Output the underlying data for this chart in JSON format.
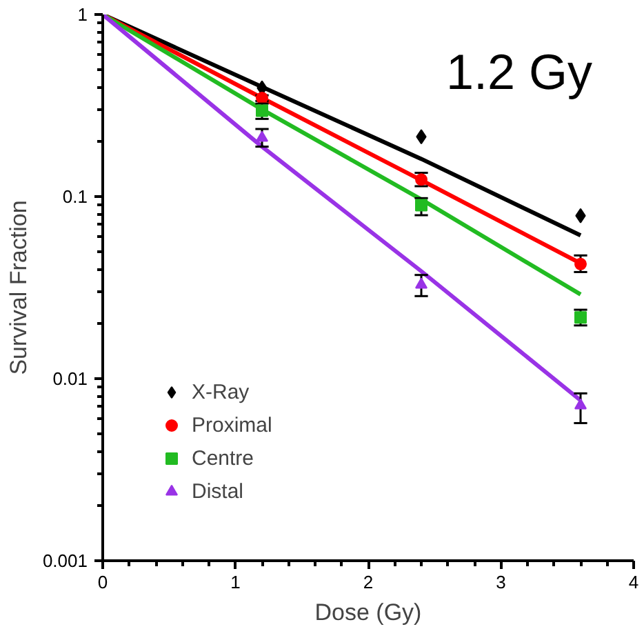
{
  "chart_data": {
    "type": "scatter",
    "title": "1.2 Gy",
    "xlabel": "Dose (Gy)",
    "ylabel": "Survival Fraction",
    "log": "y",
    "grid": false,
    "legend": "bottom left",
    "xlim": [
      0,
      4
    ],
    "ylim": [
      0.001,
      1
    ],
    "xticks": [
      0,
      {
        "value": 0.2,
        "label": null
      },
      {
        "value": 0.4,
        "label": null
      },
      {
        "value": 0.6,
        "label": null
      },
      {
        "value": 0.8,
        "label": null
      },
      1,
      {
        "value": 1.2,
        "label": null
      },
      {
        "value": 1.4,
        "label": null
      },
      {
        "value": 1.6,
        "label": null
      },
      {
        "value": 1.8,
        "label": null
      },
      2,
      {
        "value": 2.2,
        "label": null
      },
      {
        "value": 2.4,
        "label": null
      },
      {
        "value": 2.6,
        "label": null
      },
      {
        "value": 2.8,
        "label": null
      },
      3,
      {
        "value": 3.2,
        "label": null
      },
      {
        "value": 3.4,
        "label": null
      },
      {
        "value": 3.6,
        "label": null
      },
      {
        "value": 3.8,
        "label": null
      },
      4
    ],
    "yticks": [
      0.001,
      {
        "value": 0.002,
        "label": null
      },
      {
        "value": 0.003,
        "label": null
      },
      {
        "value": 0.004,
        "label": null
      },
      {
        "value": 0.005,
        "label": null
      },
      {
        "value": 0.006,
        "label": null
      },
      {
        "value": 0.007,
        "label": null
      },
      {
        "value": 0.008,
        "label": null
      },
      {
        "value": 0.009,
        "label": null
      },
      0.01,
      {
        "value": 0.02,
        "label": null
      },
      {
        "value": 0.03,
        "label": null
      },
      {
        "value": 0.04,
        "label": null
      },
      {
        "value": 0.05,
        "label": null
      },
      {
        "value": 0.06,
        "label": null
      },
      {
        "value": 0.07,
        "label": null
      },
      {
        "value": 0.08,
        "label": null
      },
      {
        "value": 0.09,
        "label": null
      },
      0.1,
      {
        "value": 0.2,
        "label": null
      },
      {
        "value": 0.3,
        "label": null
      },
      {
        "value": 0.4,
        "label": null
      },
      {
        "value": 0.5,
        "label": null
      },
      {
        "value": 0.6,
        "label": null
      },
      {
        "value": 0.7,
        "label": null
      },
      {
        "value": 0.8,
        "label": null
      },
      {
        "value": 0.9,
        "label": null
      },
      1
    ],
    "series": [
      {
        "name": "X-Ray",
        "color": "#000000",
        "marker": "diamond",
        "x": [
          1.2,
          2.4,
          3.6
        ],
        "values": [
          0.395,
          0.213,
          0.0785
        ]
      },
      {
        "name": "Proximal",
        "color": "#ff0000",
        "marker": "circle",
        "x": [
          1.2,
          2.4,
          3.6
        ],
        "values": [
          0.348,
          0.124,
          0.0426
        ],
        "errors": [
          [
            0.335,
            0.36
          ],
          [
            0.114,
            0.135
          ],
          [
            0.0385,
            0.0475
          ]
        ]
      },
      {
        "name": "Centre",
        "color": "#22bb22",
        "marker": "square",
        "x": [
          1.2,
          2.4,
          3.6
        ],
        "values": [
          0.296,
          0.0897,
          0.0217
        ],
        "errors": [
          [
            0.267,
            0.324
          ],
          [
            0.079,
            0.098
          ],
          [
            0.0196,
            0.0239
          ]
        ]
      },
      {
        "name": "Distal",
        "color": "#9933e6",
        "marker": "triangle",
        "x": [
          1.2,
          2.4,
          3.6
        ],
        "values": [
          0.21,
          0.0328,
          0.00713
        ],
        "errors": [
          [
            0.188,
            0.235
          ],
          [
            0.0284,
            0.0371
          ],
          [
            0.0057,
            0.0083
          ]
        ]
      },
      {
        "type": "line",
        "color": "#000000",
        "x": [
          0,
          1.2,
          2.4,
          3.6
        ],
        "values": [
          1,
          0.4,
          0.161,
          0.0612
        ]
      },
      {
        "type": "line",
        "color": "#ff0000",
        "x": [
          0,
          1.2,
          2.4,
          3.6
        ],
        "values": [
          1,
          0.348,
          0.123,
          0.043
        ]
      },
      {
        "type": "line",
        "color": "#22bb22",
        "x": [
          0,
          1.2,
          2.4,
          3.6
        ],
        "values": [
          1,
          0.301,
          0.0965,
          0.029
        ]
      },
      {
        "type": "line",
        "color": "#9933e6",
        "x": [
          0,
          1.2,
          2.4,
          3.6
        ],
        "values": [
          1,
          0.188,
          0.0389,
          0.0076
        ]
      }
    ]
  }
}
